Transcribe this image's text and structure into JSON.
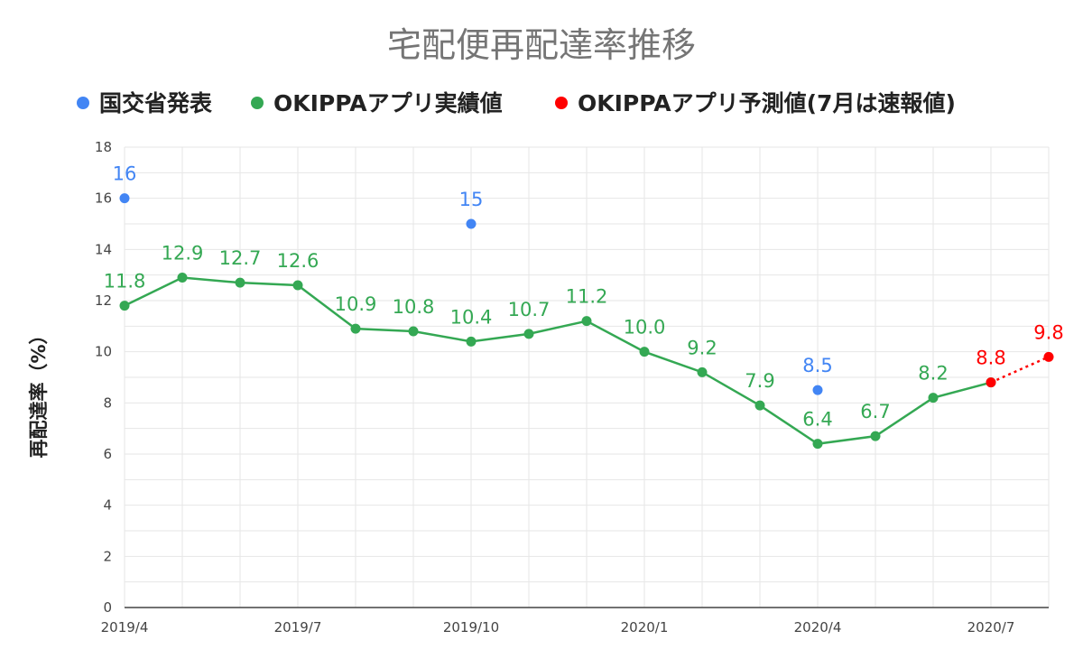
{
  "chart_data": {
    "type": "line",
    "title": "宅配便再配達率推移",
    "xlabel": "",
    "ylabel": "再配達率（%）",
    "ylim": [
      0,
      18
    ],
    "yticks": [
      "0",
      "2",
      "4",
      "6",
      "8",
      "10",
      "12",
      "14",
      "16",
      "18"
    ],
    "grid": true,
    "legend_position": "top",
    "x": [
      "2019/4",
      "2019/5",
      "2019/6",
      "2019/7",
      "2019/8",
      "2019/9",
      "2019/10",
      "2019/11",
      "2019/12",
      "2020/1",
      "2020/2",
      "2020/3",
      "2020/4",
      "2020/5",
      "2020/6",
      "2020/7",
      "2020/8"
    ],
    "xtick_labels": [
      "2019/4",
      "",
      "",
      "2019/7",
      "",
      "",
      "2019/10",
      "",
      "",
      "2020/1",
      "",
      "",
      "2020/4",
      "",
      "",
      "2020/7",
      ""
    ],
    "series": [
      {
        "name": "国交省発表",
        "color": "#4285f4",
        "style": "markers",
        "points": [
          {
            "x": "2019/4",
            "y": 16,
            "label": "16"
          },
          {
            "x": "2019/10",
            "y": 15,
            "label": "15"
          },
          {
            "x": "2020/4",
            "y": 8.5,
            "label": "8.5"
          }
        ]
      },
      {
        "name": "OKIPPAアプリ実績値",
        "color": "#34a853",
        "style": "line",
        "points": [
          {
            "x": "2019/4",
            "y": 11.8,
            "label": "11.8"
          },
          {
            "x": "2019/5",
            "y": 12.9,
            "label": "12.9"
          },
          {
            "x": "2019/6",
            "y": 12.7,
            "label": "12.7"
          },
          {
            "x": "2019/7",
            "y": 12.6,
            "label": "12.6"
          },
          {
            "x": "2019/8",
            "y": 10.9,
            "label": "10.9"
          },
          {
            "x": "2019/9",
            "y": 10.8,
            "label": "10.8"
          },
          {
            "x": "2019/10",
            "y": 10.4,
            "label": "10.4"
          },
          {
            "x": "2019/11",
            "y": 10.7,
            "label": "10.7"
          },
          {
            "x": "2019/12",
            "y": 11.2,
            "label": "11.2"
          },
          {
            "x": "2020/1",
            "y": 10.0,
            "label": "10.0"
          },
          {
            "x": "2020/2",
            "y": 9.2,
            "label": "9.2"
          },
          {
            "x": "2020/3",
            "y": 7.9,
            "label": "7.9"
          },
          {
            "x": "2020/4",
            "y": 6.4,
            "label": "6.4"
          },
          {
            "x": "2020/5",
            "y": 6.7,
            "label": "6.7"
          },
          {
            "x": "2020/6",
            "y": 8.2,
            "label": "8.2"
          },
          {
            "x": "2020/7",
            "y": 8.8,
            "label": ""
          }
        ]
      },
      {
        "name": "OKIPPAアプリ予測値(7月は速報値)",
        "color": "#ff0000",
        "style": "dotted",
        "points": [
          {
            "x": "2020/7",
            "y": 8.8,
            "label": "8.8"
          },
          {
            "x": "2020/8",
            "y": 9.8,
            "label": "9.8"
          }
        ]
      }
    ]
  }
}
